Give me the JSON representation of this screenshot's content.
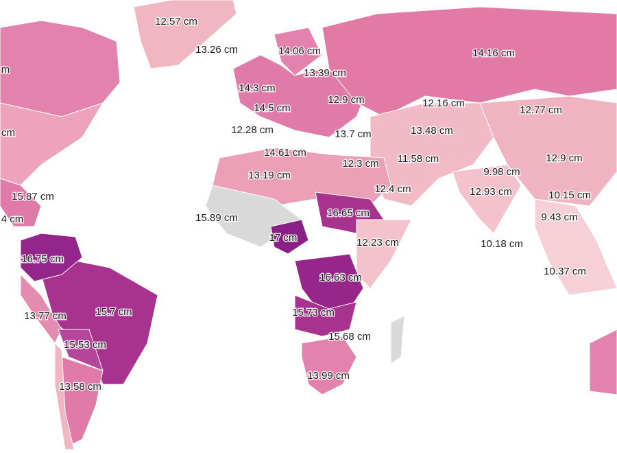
{
  "labels": [
    "m",
    "12.57 cm",
    "13.26 cm",
    "14.06 cm",
    "14.16 cm",
    "13.39 cm",
    "14.3 cm",
    "12.9 cm",
    "12.16 cm",
    "14.5 cm",
    "12.77 cm",
    "cm",
    "12.28 cm",
    "13.7 cm",
    "13.48 cm",
    "14.61 cm",
    "12.3 cm",
    "11.58 cm",
    "12.9 cm",
    "13.19 cm",
    "9.98 cm",
    "12.93 cm",
    "12.4 cm",
    "10.15 cm",
    "15.87 cm",
    "16.65 cm",
    "15.89 cm",
    "9.43 cm",
    "4 cm",
    "17 cm",
    "12.23 cm",
    "10.18 cm",
    "16.75 cm",
    "16.63 cm",
    "10.37 cm",
    "15.7 cm",
    "15.73 cm",
    "13.77 cm",
    "15.68 cm",
    "15.53 cm",
    "13.99 cm",
    "13.58 cm"
  ]
}
